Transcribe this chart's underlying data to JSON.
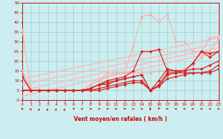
{
  "xlabel": "Vent moyen/en rafales ( km/h )",
  "xlim": [
    0,
    23
  ],
  "ylim": [
    0,
    50
  ],
  "yticks": [
    0,
    5,
    10,
    15,
    20,
    25,
    30,
    35,
    40,
    45,
    50
  ],
  "xticks": [
    0,
    1,
    2,
    3,
    4,
    5,
    6,
    7,
    8,
    9,
    10,
    11,
    12,
    13,
    14,
    15,
    16,
    17,
    18,
    19,
    20,
    21,
    22,
    23
  ],
  "bg_color": "#cceef0",
  "grid_color": "#99cccc",
  "lines": [
    {
      "x": [
        0,
        1,
        2,
        3,
        4,
        5,
        6,
        7,
        8,
        9,
        10,
        11,
        12,
        13,
        14,
        15,
        16,
        17,
        18,
        19,
        20,
        21,
        22,
        23
      ],
      "y": [
        36,
        5,
        5,
        5,
        5,
        5,
        5,
        5,
        8,
        10,
        12,
        14,
        14,
        14,
        14,
        14,
        15,
        15,
        15,
        16,
        18,
        22,
        25,
        32
      ],
      "color": "#ffaaaa",
      "lw": 0.8,
      "marker": true,
      "ms": 1.5
    },
    {
      "x": [
        0,
        1,
        2,
        3,
        4,
        5,
        6,
        7,
        8,
        9,
        10,
        11,
        12,
        13,
        14,
        15,
        16,
        17,
        18,
        19,
        20,
        21,
        22,
        23
      ],
      "y": [
        15,
        5,
        5,
        5,
        5,
        5,
        5,
        5,
        8,
        10,
        14,
        14,
        14,
        28,
        43,
        44,
        40,
        44,
        30,
        30,
        25,
        25,
        32,
        33
      ],
      "color": "#ffaaaa",
      "lw": 0.8,
      "marker": true,
      "ms": 1.5
    },
    {
      "x": [
        0,
        1,
        2,
        3,
        4,
        5,
        6,
        7,
        8,
        9,
        10,
        11,
        12,
        13,
        14,
        15,
        16,
        17,
        18,
        19,
        20,
        21,
        22,
        23
      ],
      "y": [
        12,
        5,
        5,
        5,
        5,
        5,
        5,
        5,
        6,
        8,
        10,
        11,
        12,
        15,
        25,
        25,
        26,
        15,
        15,
        15,
        19,
        25,
        24,
        25
      ],
      "color": "#dd2222",
      "lw": 0.9,
      "marker": true,
      "ms": 1.5
    },
    {
      "x": [
        0,
        1,
        2,
        3,
        4,
        5,
        6,
        7,
        8,
        9,
        10,
        11,
        12,
        13,
        14,
        15,
        16,
        17,
        18,
        19,
        20,
        21,
        22,
        23
      ],
      "y": [
        12,
        5,
        5,
        5,
        5,
        5,
        5,
        5,
        6,
        8,
        9,
        10,
        11,
        12,
        13,
        5,
        10,
        16,
        15,
        15,
        19,
        25,
        22,
        25
      ],
      "color": "#dd2222",
      "lw": 0.9,
      "marker": true,
      "ms": 1.5
    },
    {
      "x": [
        0,
        1,
        2,
        3,
        4,
        5,
        6,
        7,
        8,
        9,
        10,
        11,
        12,
        13,
        14,
        15,
        16,
        17,
        18,
        19,
        20,
        21,
        22,
        23
      ],
      "y": [
        5,
        5,
        5,
        5,
        5,
        5,
        5,
        5,
        6,
        8,
        8,
        10,
        11,
        12,
        13,
        5,
        8,
        14,
        14,
        15,
        16,
        16,
        18,
        20
      ],
      "color": "#dd2222",
      "lw": 0.9,
      "marker": true,
      "ms": 1.5
    },
    {
      "x": [
        0,
        1,
        2,
        3,
        4,
        5,
        6,
        7,
        8,
        9,
        10,
        11,
        12,
        13,
        14,
        15,
        16,
        17,
        18,
        19,
        20,
        21,
        22,
        23
      ],
      "y": [
        5,
        5,
        5,
        5,
        5,
        5,
        5,
        5,
        5,
        6,
        7,
        8,
        9,
        10,
        10,
        5,
        7,
        13,
        14,
        14,
        14,
        14,
        15,
        18
      ],
      "color": "#dd2222",
      "lw": 0.9,
      "marker": true,
      "ms": 1.5
    },
    {
      "x": [
        0,
        1,
        2,
        3,
        4,
        5,
        6,
        7,
        8,
        9,
        10,
        11,
        12,
        13,
        14,
        15,
        16,
        17,
        18,
        19,
        20,
        21,
        22,
        23
      ],
      "y": [
        5,
        5,
        5,
        5,
        5,
        5,
        5,
        5,
        5,
        5,
        6,
        7,
        8,
        9,
        9,
        5,
        7,
        11,
        12,
        13,
        14,
        14,
        14,
        16
      ],
      "color": "#dd2222",
      "lw": 0.9,
      "marker": true,
      "ms": 1.5
    },
    {
      "x": [
        0,
        23
      ],
      "y": [
        2,
        25
      ],
      "color": "#ffbbbb",
      "lw": 1.2,
      "marker": false,
      "ms": 0
    },
    {
      "x": [
        0,
        23
      ],
      "y": [
        5,
        27
      ],
      "color": "#ffbbbb",
      "lw": 1.2,
      "marker": false,
      "ms": 0
    },
    {
      "x": [
        0,
        23
      ],
      "y": [
        8,
        29
      ],
      "color": "#ffbbbb",
      "lw": 1.2,
      "marker": false,
      "ms": 0
    },
    {
      "x": [
        0,
        23
      ],
      "y": [
        11,
        32
      ],
      "color": "#ffbbbb",
      "lw": 1.2,
      "marker": false,
      "ms": 0
    }
  ],
  "arrow_angles": [
    270,
    45,
    60,
    60,
    60,
    60,
    75,
    90,
    90,
    90,
    90,
    90,
    90,
    90,
    90,
    180,
    225,
    270,
    270,
    270,
    270,
    270,
    270,
    270
  ]
}
